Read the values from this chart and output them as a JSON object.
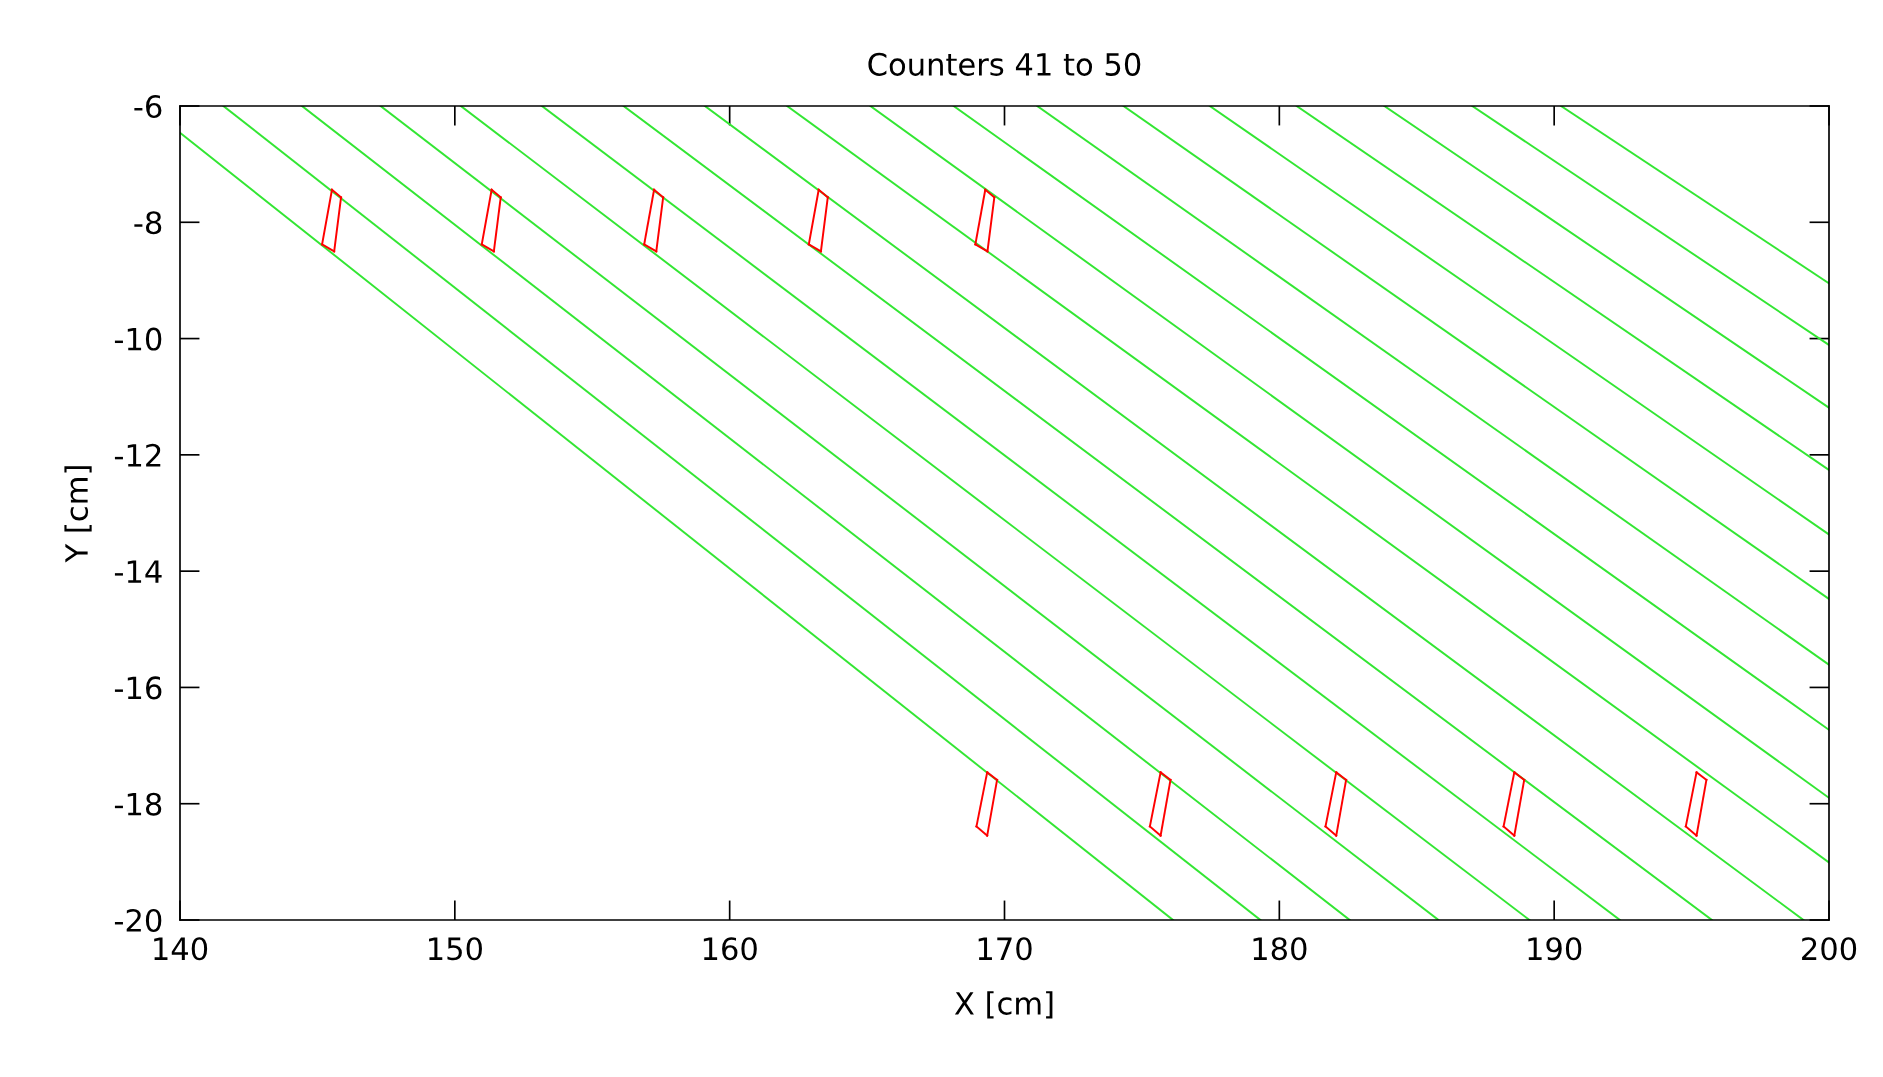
{
  "chart_data": {
    "type": "line",
    "title": "Counters 41 to 50",
    "xlabel": "X [cm]",
    "ylabel": "Y [cm]",
    "xlim": [
      140,
      200
    ],
    "ylim": [
      -20,
      -6
    ],
    "xticks": [
      140,
      150,
      160,
      170,
      180,
      190,
      200
    ],
    "yticks": [
      -20,
      -18,
      -16,
      -14,
      -12,
      -10,
      -8,
      -6
    ],
    "grid": false,
    "marker": "none",
    "line_style": "solid",
    "series": [
      {
        "color": "#33e633",
        "x": [
          140,
          176.13
        ],
        "values": [
          -6.46,
          -20
        ]
      },
      {
        "color": "#33e633",
        "x": [
          141.58,
          179.31
        ],
        "values": [
          -6,
          -20
        ]
      },
      {
        "color": "#33e633",
        "x": [
          144.44,
          182.56
        ],
        "values": [
          -6,
          -20
        ]
      },
      {
        "color": "#33e633",
        "x": [
          147.3,
          185.79
        ],
        "values": [
          -6,
          -20
        ]
      },
      {
        "color": "#33e633",
        "x": [
          150.22,
          189.1
        ],
        "values": [
          -6,
          -20
        ]
      },
      {
        "color": "#33e633",
        "x": [
          153.17,
          192.39
        ],
        "values": [
          -6,
          -20
        ]
      },
      {
        "color": "#33e633",
        "x": [
          156.14,
          195.74
        ],
        "values": [
          -6,
          -20
        ]
      },
      {
        "color": "#33e633",
        "x": [
          159.1,
          199.07
        ],
        "values": [
          -6,
          -20
        ]
      },
      {
        "color": "#33e633",
        "x": [
          162.09,
          200
        ],
        "values": [
          -6,
          -19.01
        ]
      },
      {
        "color": "#33e633",
        "x": [
          165.12,
          200
        ],
        "values": [
          -6,
          -17.9
        ]
      },
      {
        "color": "#33e633",
        "x": [
          168.15,
          200
        ],
        "values": [
          -6,
          -16.73
        ]
      },
      {
        "color": "#33e633",
        "x": [
          171.19,
          200
        ],
        "values": [
          -6,
          -15.61
        ]
      },
      {
        "color": "#33e633",
        "x": [
          174.33,
          200
        ],
        "values": [
          -6,
          -14.48
        ]
      },
      {
        "color": "#33e633",
        "x": [
          177.47,
          200
        ],
        "values": [
          -6,
          -13.37
        ]
      },
      {
        "color": "#33e633",
        "x": [
          180.63,
          200
        ],
        "values": [
          -6,
          -12.26
        ]
      },
      {
        "color": "#33e633",
        "x": [
          183.82,
          200
        ],
        "values": [
          -6,
          -11.19
        ]
      },
      {
        "color": "#33e633",
        "x": [
          187.02,
          200
        ],
        "values": [
          -6,
          -10.11
        ]
      },
      {
        "color": "#33e633",
        "x": [
          190.25,
          200
        ],
        "values": [
          -6,
          -9.05
        ]
      },
      {
        "color": "#ff0000",
        "x": [
          145.17,
          145.53
        ],
        "values": [
          -8.38,
          -7.44
        ]
      },
      {
        "color": "#ff0000",
        "x": [
          145.53,
          145.86
        ],
        "values": [
          -7.44,
          -7.57
        ]
      },
      {
        "color": "#ff0000",
        "x": [
          145.61,
          145.86
        ],
        "values": [
          -8.5,
          -7.57
        ]
      },
      {
        "color": "#ff0000",
        "x": [
          145.17,
          145.61
        ],
        "values": [
          -8.38,
          -8.5
        ]
      },
      {
        "color": "#ff0000",
        "x": [
          150.98,
          151.34
        ],
        "values": [
          -8.38,
          -7.44
        ]
      },
      {
        "color": "#ff0000",
        "x": [
          151.34,
          151.67
        ],
        "values": [
          -7.44,
          -7.57
        ]
      },
      {
        "color": "#ff0000",
        "x": [
          151.42,
          151.67
        ],
        "values": [
          -8.5,
          -7.57
        ]
      },
      {
        "color": "#ff0000",
        "x": [
          150.98,
          151.42
        ],
        "values": [
          -8.38,
          -8.5
        ]
      },
      {
        "color": "#ff0000",
        "x": [
          156.89,
          157.25
        ],
        "values": [
          -8.38,
          -7.44
        ]
      },
      {
        "color": "#ff0000",
        "x": [
          157.25,
          157.58
        ],
        "values": [
          -7.44,
          -7.57
        ]
      },
      {
        "color": "#ff0000",
        "x": [
          157.33,
          157.58
        ],
        "values": [
          -8.5,
          -7.57
        ]
      },
      {
        "color": "#ff0000",
        "x": [
          156.89,
          157.33
        ],
        "values": [
          -8.38,
          -8.5
        ]
      },
      {
        "color": "#ff0000",
        "x": [
          162.88,
          163.24
        ],
        "values": [
          -8.38,
          -7.44
        ]
      },
      {
        "color": "#ff0000",
        "x": [
          163.24,
          163.57
        ],
        "values": [
          -7.44,
          -7.57
        ]
      },
      {
        "color": "#ff0000",
        "x": [
          163.32,
          163.57
        ],
        "values": [
          -8.5,
          -7.57
        ]
      },
      {
        "color": "#ff0000",
        "x": [
          162.88,
          163.32
        ],
        "values": [
          -8.38,
          -8.5
        ]
      },
      {
        "color": "#ff0000",
        "x": [
          168.94,
          169.3
        ],
        "values": [
          -8.38,
          -7.44
        ]
      },
      {
        "color": "#ff0000",
        "x": [
          169.3,
          169.63
        ],
        "values": [
          -7.44,
          -7.57
        ]
      },
      {
        "color": "#ff0000",
        "x": [
          169.38,
          169.63
        ],
        "values": [
          -8.5,
          -7.57
        ]
      },
      {
        "color": "#ff0000",
        "x": [
          168.94,
          169.38
        ],
        "values": [
          -8.38,
          -8.5
        ]
      },
      {
        "color": "#ff0000",
        "x": [
          168.98,
          169.37
        ],
        "values": [
          -18.39,
          -17.46
        ]
      },
      {
        "color": "#ff0000",
        "x": [
          169.37,
          169.73
        ],
        "values": [
          -17.46,
          -17.59
        ]
      },
      {
        "color": "#ff0000",
        "x": [
          169.37,
          169.73
        ],
        "values": [
          -18.55,
          -17.59
        ]
      },
      {
        "color": "#ff0000",
        "x": [
          168.98,
          169.37
        ],
        "values": [
          -18.39,
          -18.55
        ]
      },
      {
        "color": "#ff0000",
        "x": [
          175.29,
          175.68
        ],
        "values": [
          -18.39,
          -17.46
        ]
      },
      {
        "color": "#ff0000",
        "x": [
          175.68,
          176.04
        ],
        "values": [
          -17.46,
          -17.59
        ]
      },
      {
        "color": "#ff0000",
        "x": [
          175.68,
          176.04
        ],
        "values": [
          -18.55,
          -17.59
        ]
      },
      {
        "color": "#ff0000",
        "x": [
          175.29,
          175.68
        ],
        "values": [
          -18.39,
          -18.55
        ]
      },
      {
        "color": "#ff0000",
        "x": [
          181.68,
          182.07
        ],
        "values": [
          -18.39,
          -17.46
        ]
      },
      {
        "color": "#ff0000",
        "x": [
          182.07,
          182.43
        ],
        "values": [
          -17.46,
          -17.59
        ]
      },
      {
        "color": "#ff0000",
        "x": [
          182.07,
          182.43
        ],
        "values": [
          -18.55,
          -17.59
        ]
      },
      {
        "color": "#ff0000",
        "x": [
          181.68,
          182.07
        ],
        "values": [
          -18.39,
          -18.55
        ]
      },
      {
        "color": "#ff0000",
        "x": [
          188.16,
          188.55
        ],
        "values": [
          -18.39,
          -17.46
        ]
      },
      {
        "color": "#ff0000",
        "x": [
          188.55,
          188.91
        ],
        "values": [
          -17.46,
          -17.59
        ]
      },
      {
        "color": "#ff0000",
        "x": [
          188.55,
          188.91
        ],
        "values": [
          -18.55,
          -17.59
        ]
      },
      {
        "color": "#ff0000",
        "x": [
          188.16,
          188.55
        ],
        "values": [
          -18.39,
          -18.55
        ]
      },
      {
        "color": "#ff0000",
        "x": [
          194.79,
          195.18
        ],
        "values": [
          -18.39,
          -17.46
        ]
      },
      {
        "color": "#ff0000",
        "x": [
          195.18,
          195.54
        ],
        "values": [
          -17.46,
          -17.59
        ]
      },
      {
        "color": "#ff0000",
        "x": [
          195.18,
          195.54
        ],
        "values": [
          -18.55,
          -17.59
        ]
      },
      {
        "color": "#ff0000",
        "x": [
          194.79,
          195.18
        ],
        "values": [
          -18.39,
          -18.55
        ]
      }
    ]
  }
}
